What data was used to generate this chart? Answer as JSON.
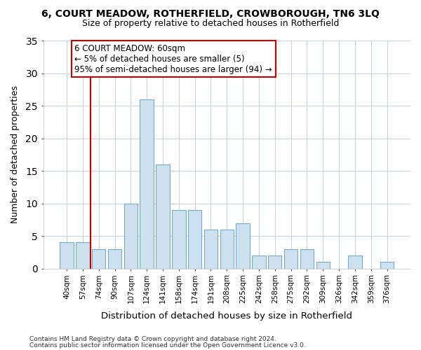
{
  "title1": "6, COURT MEADOW, ROTHERFIELD, CROWBOROUGH, TN6 3LQ",
  "title2": "Size of property relative to detached houses in Rotherfield",
  "xlabel": "Distribution of detached houses by size in Rotherfield",
  "ylabel": "Number of detached properties",
  "bar_values": [
    4,
    4,
    3,
    3,
    10,
    26,
    16,
    9,
    9,
    6,
    6,
    7,
    2,
    2,
    3,
    3,
    1,
    0,
    2,
    0,
    1
  ],
  "bar_labels": [
    "40sqm",
    "57sqm",
    "74sqm",
    "90sqm",
    "107sqm",
    "124sqm",
    "141sqm",
    "158sqm",
    "174sqm",
    "191sqm",
    "208sqm",
    "225sqm",
    "242sqm",
    "258sqm",
    "275sqm",
    "292sqm",
    "309sqm",
    "326sqm",
    "342sqm",
    "359sqm",
    "376sqm"
  ],
  "bar_color": "#cce0f0",
  "bar_edgecolor": "#7aaac8",
  "vline_x": 1.5,
  "annotation_text": "6 COURT MEADOW: 60sqm\n← 5% of detached houses are smaller (5)\n95% of semi-detached houses are larger (94) →",
  "annotation_box_facecolor": "#ffffff",
  "annotation_box_edgecolor": "#cc0000",
  "vline_color": "#cc0000",
  "ylim": [
    0,
    35
  ],
  "yticks": [
    0,
    5,
    10,
    15,
    20,
    25,
    30,
    35
  ],
  "grid_color": "#c8d4e0",
  "bg_color": "#ffffff",
  "footer1": "Contains HM Land Registry data © Crown copyright and database right 2024.",
  "footer2": "Contains public sector information licensed under the Open Government Licence v3.0."
}
